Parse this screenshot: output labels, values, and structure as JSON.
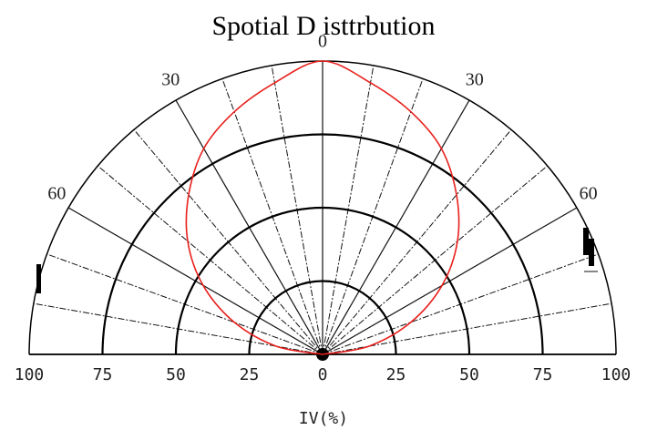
{
  "chart_data": {
    "type": "polar",
    "title": "Spotial   D    isttrbution",
    "xlabel": "IV(%)",
    "radial_range": [
      0,
      100
    ],
    "angle_range_deg": [
      -90,
      90
    ],
    "ring_levels": [
      25,
      50,
      75,
      100
    ],
    "radial_tick_labels": [
      "100",
      "75",
      "50",
      "25",
      "0",
      "25",
      "50",
      "75",
      "100"
    ],
    "angle_labels": [
      {
        "text": "0",
        "angle": 0
      },
      {
        "text": "30",
        "angle": -30
      },
      {
        "text": "30",
        "angle": 30
      },
      {
        "text": "60",
        "angle": -60
      },
      {
        "text": "60",
        "angle": 60
      }
    ],
    "gridline_angles_deg": [
      -90,
      -80,
      -70,
      -60,
      -50,
      -40,
      -30,
      -20,
      -10,
      0,
      10,
      20,
      30,
      40,
      50,
      60,
      70,
      80,
      90
    ],
    "series": [
      {
        "color": "#e8201c",
        "angles_deg": [
          -90,
          -80,
          -70,
          -60,
          -50,
          -40,
          -30,
          -20,
          -10,
          0,
          10,
          20,
          30,
          40,
          50,
          60,
          70,
          80,
          90
        ],
        "values": [
          0,
          16,
          32,
          47,
          60,
          71,
          81,
          88,
          94,
          100,
          94,
          88,
          81,
          71,
          60,
          47,
          32,
          16,
          0
        ]
      }
    ],
    "grid": true
  }
}
